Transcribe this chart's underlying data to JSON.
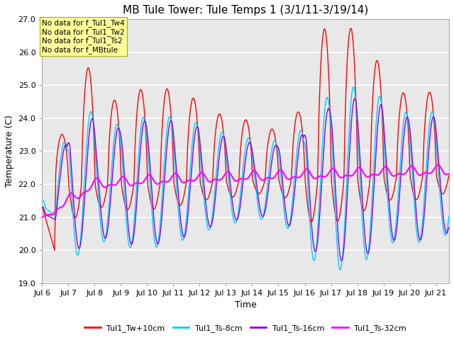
{
  "title": "MB Tule Tower: Tule Temps 1 (3/1/11-3/19/14)",
  "xlabel": "Time",
  "ylabel": "Temperature (C)",
  "ylim": [
    19.0,
    27.0
  ],
  "yticks": [
    19.0,
    20.0,
    21.0,
    22.0,
    23.0,
    24.0,
    25.0,
    26.0,
    27.0
  ],
  "xtick_labels": [
    "Jul 6",
    "Jul 7",
    "Jul 8",
    "Jul 9",
    "Jul 10",
    "Jul 11",
    "Jul 12",
    "Jul 13",
    "Jul 14",
    "Jul 15",
    "Jul 16",
    "Jul 17",
    "Jul 18",
    "Jul 19",
    "Jul 20",
    "Jul 21"
  ],
  "n_days": 15.5,
  "n_points": 1500,
  "line_colors": {
    "Tw10": "#ff0000",
    "Ts8": "#00ccff",
    "Ts16": "#8800ee",
    "Ts32": "#ff00ff"
  },
  "line_widths": {
    "Tw10": 1.0,
    "Ts8": 1.0,
    "Ts16": 1.0,
    "Ts32": 1.5
  },
  "legend_labels": [
    "Tul1_Tw+10cm",
    "Tul1_Ts-8cm",
    "Tul1_Ts-16cm",
    "Tul1_Ts-32cm"
  ],
  "bg_color": "#e8e8e8",
  "grid_color": "#ffffff",
  "annotations": [
    "No data for f_Tul1_Tw4",
    "No data for f_Tul1_Tw2",
    "No data for f_Tul1_Ts2",
    "No data for f_MBtule"
  ],
  "annotation_box_color": "#ffff99",
  "annotation_box_edge": "#aaaa00",
  "figsize": [
    6.4,
    4.8
  ],
  "dpi": 100
}
